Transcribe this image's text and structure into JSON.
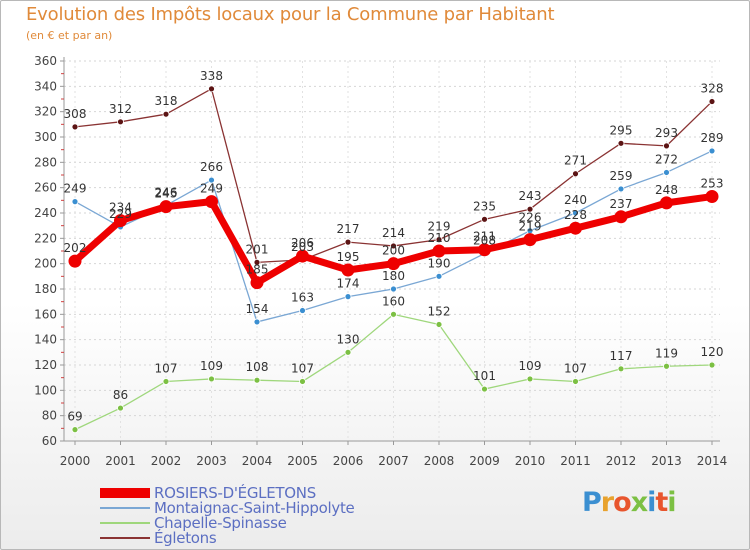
{
  "header": {
    "title": "Evolution des Impôts locaux pour la Commune par Habitant",
    "subtitle": "(en € et par an)",
    "title_color": "#e08a3a"
  },
  "logo": {
    "text": "Proxiti",
    "letter_colors": [
      "#3b8fd1",
      "#e8a22d",
      "#e8552d",
      "#7cc043",
      "#3b8fd1",
      "#e8552d",
      "#7cc043"
    ]
  },
  "chart_data": {
    "type": "line",
    "x": [
      2000,
      2001,
      2002,
      2003,
      2004,
      2005,
      2006,
      2007,
      2008,
      2009,
      2010,
      2011,
      2012,
      2013,
      2014
    ],
    "ylim": [
      60,
      360
    ],
    "yticks": [
      60,
      80,
      100,
      120,
      140,
      160,
      180,
      200,
      220,
      240,
      260,
      280,
      300,
      320,
      340,
      360
    ],
    "grid": true,
    "legend_position": "bottom",
    "series": [
      {
        "name": "ROSIERS-D'ÉGLETONS",
        "color": "#ee0000",
        "marker_color": "#ee0000",
        "emphasized": true,
        "values": [
          202,
          234,
          245,
          249,
          185,
          206,
          195,
          200,
          210,
          211,
          219,
          228,
          237,
          248,
          253
        ]
      },
      {
        "name": "Montaignac-Saint-Hippolyte",
        "color": "#7aa7d4",
        "marker_color": "#3b8fd1",
        "values": [
          249,
          229,
          246,
          266,
          154,
          163,
          174,
          180,
          190,
          208,
          226,
          240,
          259,
          272,
          289
        ]
      },
      {
        "name": "Chapelle-Spinasse",
        "color": "#9fd77c",
        "marker_color": "#7cc043",
        "values": [
          69,
          86,
          107,
          109,
          108,
          107,
          130,
          160,
          152,
          101,
          109,
          107,
          117,
          119,
          120
        ]
      },
      {
        "name": "Égletons",
        "color": "#8a3333",
        "marker_color": "#5c1414",
        "values": [
          308,
          312,
          318,
          338,
          201,
          203,
          217,
          214,
          219,
          235,
          243,
          271,
          295,
          293,
          328
        ]
      }
    ]
  }
}
